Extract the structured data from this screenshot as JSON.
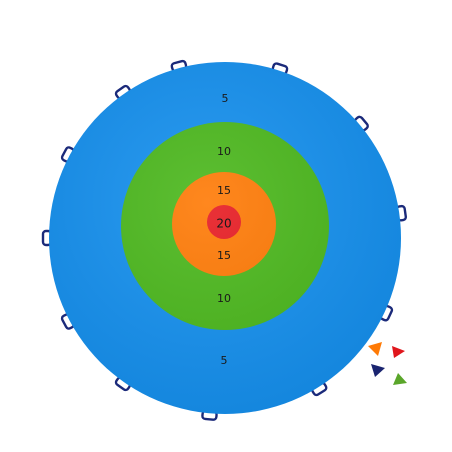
{
  "target": {
    "rings": [
      {
        "name": "outer-ring",
        "color": "#1591f0"
      },
      {
        "name": "middle-ring",
        "color": "#4bb81c"
      },
      {
        "name": "inner-ring",
        "color": "#ff7a05"
      },
      {
        "name": "bullseye",
        "color": "#e71b22"
      }
    ],
    "handle_color": "#1b2a7a",
    "scores": {
      "outer_top": "5",
      "middle_top": "10",
      "inner_top": "15",
      "bullseye": "20",
      "inner_bottom": "15",
      "middle_bottom": "10",
      "outer_bottom": "5"
    }
  },
  "beanbags": [
    {
      "name": "orange-beanbag",
      "color": "#ff7a05"
    },
    {
      "name": "red-beanbag",
      "color": "#e0161c"
    },
    {
      "name": "navy-beanbag",
      "color": "#1a2470"
    },
    {
      "name": "green-beanbag",
      "color": "#5aa62a"
    }
  ]
}
